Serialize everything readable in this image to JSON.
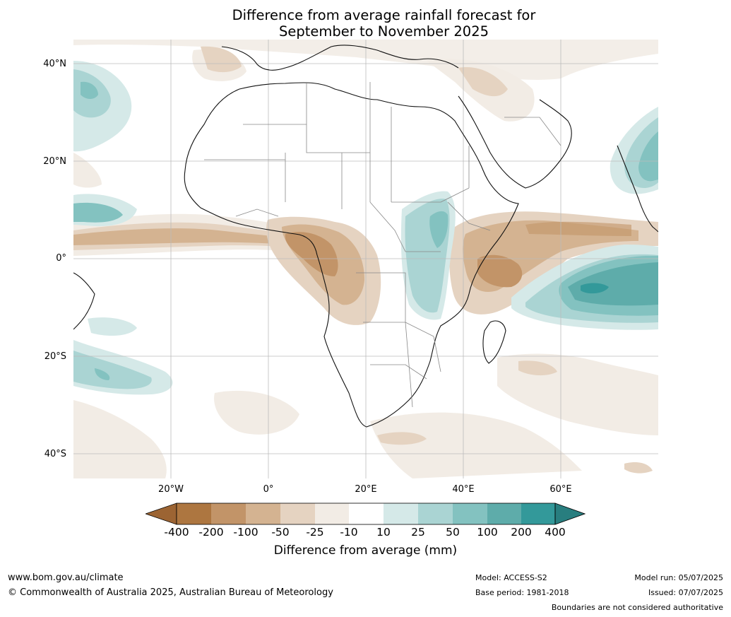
{
  "title": {
    "line1": "Difference from average rainfall forecast for",
    "line2": "September to November 2025"
  },
  "map": {
    "lat_labels": [
      "40°N",
      "20°N",
      "0°",
      "20°S",
      "40°S"
    ],
    "lon_labels": [
      "20°W",
      "0°",
      "20°E",
      "40°E",
      "60°E"
    ]
  },
  "colorbar": {
    "title": "Difference from average (mm)",
    "tick_labels": [
      "-400",
      "-200",
      "-100",
      "-50",
      "-25",
      "-10",
      "10",
      "25",
      "50",
      "100",
      "200",
      "400"
    ],
    "colors": {
      "lt_-400": "#9c6433",
      "-400_-200": "#ad7640",
      "-200_-100": "#c29468",
      "-100_-50": "#d4b391",
      "-50_-25": "#e5d3c1",
      "-25_-10": "#f2ece5",
      "-10_10": "#ffffff",
      "10_25": "#d5e9e8",
      "25_50": "#aad4d3",
      "50_100": "#83c2c0",
      "100_200": "#5eacaa",
      "200_400": "#33999a",
      "gt_400": "#287e7f"
    }
  },
  "footer": {
    "website": "www.bom.gov.au/climate",
    "copyright": "© Commonwealth of Australia 2025, Australian Bureau of Meteorology",
    "model": "Model: ACCESS-S2",
    "base_period": "Base period: 1981-2018",
    "model_run": "Model run: 05/07/2025",
    "issued": "Issued: 07/07/2025",
    "disclaimer": "Boundaries are not considered authoritative"
  }
}
